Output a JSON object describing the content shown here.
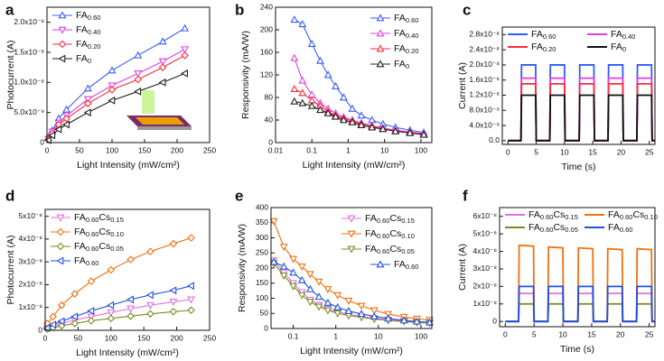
{
  "chart_data": [
    {
      "type": "line",
      "panel": "a",
      "xlabel": "Light Intensity (mW/cm²)",
      "ylabel": "Photocurrent (A)",
      "xlim": [
        0,
        250
      ],
      "xticks": [
        0,
        50,
        100,
        150,
        200,
        250
      ],
      "ylim": [
        0,
        2.25e-08
      ],
      "yticks": [
        0,
        {
          "value": 5e-09,
          "label": "5.0x10⁻⁹"
        },
        {
          "value": 1e-08,
          "label": "1.0x10⁻⁸"
        },
        {
          "value": 1.5e-08,
          "label": "1.5x10⁻⁸"
        },
        {
          "value": 2e-08,
          "label": "2.0x10⁻⁸"
        }
      ],
      "log_x": false,
      "legend": "upper left",
      "x": [
        2,
        8,
        18,
        30,
        63,
        100,
        140,
        178,
        212
      ],
      "series": [
        {
          "name": "FA0.60",
          "color": "#3a5cff",
          "marker": "triangle-up",
          "values": [
            8e-10,
            2e-09,
            4e-09,
            5.5e-09,
            9e-09,
            1.2e-08,
            1.45e-08,
            1.68e-08,
            1.9e-08
          ]
        },
        {
          "name": "FA0.40",
          "color": "#e040e0",
          "marker": "triangle-down",
          "values": [
            6e-10,
            1.8e-09,
            3.3e-09,
            4.5e-09,
            7.2e-09,
            9.5e-09,
            1.15e-08,
            1.35e-08,
            1.55e-08
          ]
        },
        {
          "name": "FA0.20",
          "color": "#ff2a3a",
          "marker": "diamond",
          "values": [
            5e-10,
            1.5e-09,
            3e-09,
            4e-09,
            6.5e-09,
            8.8e-09,
            1.05e-08,
            1.25e-08,
            1.45e-08
          ]
        },
        {
          "name": "FA0",
          "color": "#222222",
          "marker": "triangle-left",
          "values": [
            4e-10,
            1.2e-09,
            2.2e-09,
            3e-09,
            5e-09,
            7e-09,
            8.5e-09,
            1e-08,
            1.15e-08
          ]
        }
      ]
    },
    {
      "type": "line",
      "panel": "b",
      "xlabel": "Light Intensity (mW/cm²)",
      "ylabel": "Responsivity (mA/W)",
      "xlim": [
        0.01,
        200
      ],
      "xticks": [
        0.01,
        0.1,
        1,
        10,
        100
      ],
      "ylim": [
        0,
        240
      ],
      "yticks": [
        0,
        40,
        80,
        120,
        160,
        200,
        240
      ],
      "log_x": true,
      "legend": "upper right",
      "x": [
        0.033,
        0.055,
        0.1,
        0.17,
        0.28,
        0.45,
        0.75,
        1.3,
        2.3,
        4.5,
        9,
        20,
        50,
        120
      ],
      "series": [
        {
          "name": "FA0.60",
          "color": "#3a5cff",
          "marker": "triangle-up",
          "values": [
            218,
            210,
            175,
            145,
            120,
            100,
            80,
            60,
            48,
            40,
            33,
            27,
            22,
            18
          ]
        },
        {
          "name": "FA0.40",
          "color": "#e040e0",
          "marker": "triangle-up",
          "values": [
            150,
            110,
            85,
            70,
            60,
            52,
            45,
            40,
            35,
            30,
            26,
            22,
            19,
            16
          ]
        },
        {
          "name": "FA0.20",
          "color": "#ff2a3a",
          "marker": "triangle-up",
          "values": [
            95,
            88,
            75,
            65,
            55,
            48,
            43,
            38,
            33,
            29,
            25,
            21,
            18,
            15
          ]
        },
        {
          "name": "FA0",
          "color": "#222222",
          "marker": "triangle-up",
          "values": [
            73,
            70,
            65,
            58,
            52,
            46,
            40,
            36,
            31,
            27,
            24,
            20,
            17,
            14
          ]
        }
      ]
    },
    {
      "type": "line",
      "panel": "c",
      "xlabel": "Time (s)",
      "ylabel": "Current (A)",
      "xlim": [
        -1,
        26
      ],
      "xticks": [
        0,
        5,
        10,
        15,
        20,
        25
      ],
      "ylim": [
        -1e-09,
        3e-08
      ],
      "yticks": [
        {
          "value": 0,
          "label": "0.0"
        },
        {
          "value": 4e-09,
          "label": "4.0x10⁻⁹"
        },
        {
          "value": 8e-09,
          "label": "8.0x10⁻⁹"
        },
        {
          "value": 1.2e-08,
          "label": "1.2x10⁻⁸"
        },
        {
          "value": 1.6e-08,
          "label": "1.6x10⁻⁸"
        },
        {
          "value": 2e-08,
          "label": "2.0x10⁻⁸"
        },
        {
          "value": 2.4e-08,
          "label": "2.4x10⁻⁸"
        },
        {
          "value": 2.8e-08,
          "label": "2.8x10⁻⁸"
        }
      ],
      "log_x": false,
      "legend": "upper center",
      "x": [
        0,
        2.3,
        2.4,
        4.9,
        5.0,
        7.4,
        7.5,
        10.0,
        10.1,
        12.6,
        12.7,
        15.2,
        15.3,
        17.7,
        17.8,
        20.3,
        20.4,
        22.8,
        22.9,
        25.4,
        25.5,
        26
      ],
      "series": [
        {
          "name": "FA0.60",
          "color": "#2f5bff",
          "marker": "none",
          "values": [
            0,
            0,
            2e-08,
            2e-08,
            0,
            0,
            2e-08,
            2e-08,
            0,
            0,
            2e-08,
            2e-08,
            0,
            0,
            2e-08,
            2e-08,
            0,
            0,
            2e-08,
            2e-08,
            0,
            0
          ]
        },
        {
          "name": "FA0.40",
          "color": "#e040e0",
          "marker": "none",
          "values": [
            0,
            0,
            1.65e-08,
            1.65e-08,
            0,
            0,
            1.65e-08,
            1.65e-08,
            0,
            0,
            1.65e-08,
            1.65e-08,
            0,
            0,
            1.65e-08,
            1.65e-08,
            0,
            0,
            1.65e-08,
            1.65e-08,
            0,
            0
          ]
        },
        {
          "name": "FA0.20",
          "color": "#ff2a3a",
          "marker": "none",
          "values": [
            0,
            0,
            1.5e-08,
            1.5e-08,
            0,
            0,
            1.5e-08,
            1.5e-08,
            0,
            0,
            1.5e-08,
            1.5e-08,
            0,
            0,
            1.5e-08,
            1.5e-08,
            0,
            0,
            1.5e-08,
            1.5e-08,
            0,
            0
          ]
        },
        {
          "name": "FA0",
          "color": "#111111",
          "marker": "none",
          "values": [
            0,
            0,
            1.2e-08,
            1.2e-08,
            0,
            0,
            1.2e-08,
            1.2e-08,
            0,
            0,
            1.2e-08,
            1.2e-08,
            0,
            0,
            1.2e-08,
            1.2e-08,
            0,
            0,
            1.2e-08,
            1.2e-08,
            0,
            0
          ]
        }
      ]
    },
    {
      "type": "line",
      "panel": "d",
      "xlabel": "Light Intensity (mW/cm²)",
      "ylabel": "Photocurrent (A)",
      "xlim": [
        0,
        250
      ],
      "xticks": [
        0,
        50,
        100,
        150,
        200,
        250
      ],
      "ylim": [
        0,
        5.3e-08
      ],
      "yticks": [
        0,
        {
          "value": 1e-08,
          "label": "1x10⁻⁸"
        },
        {
          "value": 2e-08,
          "label": "2x10⁻⁸"
        },
        {
          "value": 3e-08,
          "label": "3x10⁻⁸"
        },
        {
          "value": 4e-08,
          "label": "4x10⁻⁸"
        },
        {
          "value": 5e-08,
          "label": "5x10⁻⁸"
        }
      ],
      "log_x": false,
      "legend": "upper left",
      "x": [
        3,
        12,
        25,
        45,
        70,
        100,
        130,
        160,
        195,
        222
      ],
      "series": [
        {
          "name": "FA0.60Cs0.15",
          "color": "#e070e0",
          "marker": "triangle-down",
          "values": [
            8e-10,
            1.8e-09,
            3e-09,
            4.5e-09,
            6e-09,
            7.8e-09,
            9.5e-09,
            1.1e-08,
            1.25e-08,
            1.35e-08
          ]
        },
        {
          "name": "FA0.60Cs0.10",
          "color": "#f07010",
          "marker": "diamond",
          "values": [
            3e-09,
            6e-09,
            1.1e-08,
            1.6e-08,
            2.15e-08,
            2.65e-08,
            3.1e-08,
            3.45e-08,
            3.8e-08,
            4.05e-08
          ]
        },
        {
          "name": "FA0.60Cs0.05",
          "color": "#7a8a20",
          "marker": "diamond",
          "values": [
            5e-10,
            1.2e-09,
            2e-09,
            3e-09,
            4.2e-09,
            5.2e-09,
            6.2e-09,
            7.2e-09,
            8.2e-09,
            8.8e-09
          ]
        },
        {
          "name": "FA0.60",
          "color": "#2050e0",
          "marker": "triangle-left",
          "values": [
            1e-09,
            2.5e-09,
            4e-09,
            6e-09,
            8.5e-09,
            1.1e-08,
            1.35e-08,
            1.55e-08,
            1.75e-08,
            1.95e-08
          ]
        }
      ]
    },
    {
      "type": "line",
      "panel": "e",
      "xlabel": "Light Intensity (mW/cm²)",
      "ylabel": "Responsivity (mA/W)",
      "xlim": [
        0.03,
        180
      ],
      "xticks": [
        0.1,
        1,
        10,
        100
      ],
      "ylim": [
        0,
        400
      ],
      "yticks": [
        0,
        50,
        100,
        150,
        200,
        250,
        300,
        350,
        400
      ],
      "log_x": true,
      "legend": "upper right",
      "x": [
        0.035,
        0.06,
        0.1,
        0.16,
        0.25,
        0.4,
        0.65,
        1.1,
        2,
        4,
        8,
        17,
        40,
        80,
        160
      ],
      "series": [
        {
          "name": "FA0.60Cs0.15",
          "color": "#e070e0",
          "marker": "triangle-down",
          "values": [
            225,
            185,
            150,
            120,
            95,
            78,
            65,
            55,
            47,
            40,
            34,
            29,
            25,
            22,
            20
          ]
        },
        {
          "name": "FA0.60Cs0.10",
          "color": "#f07010",
          "marker": "triangle-down",
          "values": [
            355,
            270,
            230,
            205,
            180,
            155,
            130,
            110,
            92,
            75,
            60,
            48,
            38,
            32,
            28
          ]
        },
        {
          "name": "FA0.60Cs0.05",
          "color": "#7a8a20",
          "marker": "triangle-down",
          "values": [
            215,
            175,
            140,
            110,
            88,
            72,
            60,
            50,
            43,
            37,
            31,
            27,
            23,
            20,
            18
          ]
        },
        {
          "name": "FA0.60",
          "color": "#2050e0",
          "marker": "triangle-up",
          "values": [
            220,
            205,
            185,
            160,
            130,
            105,
            85,
            70,
            58,
            48,
            40,
            33,
            27,
            23,
            20
          ]
        }
      ]
    },
    {
      "type": "line",
      "panel": "f",
      "xlabel": "Time (s)",
      "ylabel": "Current (A)",
      "xlim": [
        -1,
        26
      ],
      "xticks": [
        0,
        5,
        10,
        15,
        20,
        25
      ],
      "ylim": [
        -3e-09,
        6.5e-08
      ],
      "yticks": [
        0,
        {
          "value": 1e-08,
          "label": "1x10⁻⁸"
        },
        {
          "value": 2e-08,
          "label": "2x10⁻⁸"
        },
        {
          "value": 3e-08,
          "label": "3x10⁻⁸"
        },
        {
          "value": 4e-08,
          "label": "4x10⁻⁸"
        },
        {
          "value": 5e-08,
          "label": "5x10⁻⁸"
        },
        {
          "value": 6e-08,
          "label": "6x10⁻⁸"
        }
      ],
      "log_x": false,
      "legend": "upper center",
      "x": [
        0,
        2.3,
        2.4,
        4.9,
        5.0,
        7.4,
        7.5,
        10.0,
        10.1,
        12.6,
        12.7,
        15.2,
        15.3,
        17.7,
        17.8,
        20.3,
        20.4,
        22.8,
        22.9,
        25.4,
        25.5,
        26
      ],
      "series": [
        {
          "name": "FA0.60Cs0.15",
          "color": "#e070e0",
          "marker": "none",
          "values": [
            0,
            0,
            1.6e-08,
            1.6e-08,
            0,
            0,
            1.6e-08,
            1.6e-08,
            0,
            0,
            1.6e-08,
            1.6e-08,
            0,
            0,
            1.6e-08,
            1.6e-08,
            0,
            0,
            1.6e-08,
            1.6e-08,
            0,
            0
          ]
        },
        {
          "name": "FA0.60Cs0.10",
          "color": "#f07010",
          "marker": "none",
          "values": [
            0,
            0,
            4.35e-08,
            4.3e-08,
            0,
            0,
            4.25e-08,
            4.2e-08,
            0,
            0,
            4.2e-08,
            4.15e-08,
            0,
            0,
            4.15e-08,
            4.1e-08,
            0,
            0,
            4.15e-08,
            4.1e-08,
            0,
            0
          ]
        },
        {
          "name": "FA0.60Cs0.05",
          "color": "#7a8a20",
          "marker": "none",
          "values": [
            0,
            0,
            1e-08,
            1e-08,
            0,
            0,
            1e-08,
            1e-08,
            0,
            0,
            1e-08,
            1e-08,
            0,
            0,
            1e-08,
            1e-08,
            0,
            0,
            1e-08,
            1e-08,
            0,
            0
          ]
        },
        {
          "name": "FA0.60",
          "color": "#2050e0",
          "marker": "none",
          "values": [
            0,
            0,
            2e-08,
            2e-08,
            0,
            0,
            2e-08,
            2e-08,
            0,
            0,
            2e-08,
            2e-08,
            0,
            0,
            2e-08,
            2e-08,
            0,
            0,
            2e-08,
            2e-08,
            0,
            0
          ]
        }
      ]
    }
  ]
}
